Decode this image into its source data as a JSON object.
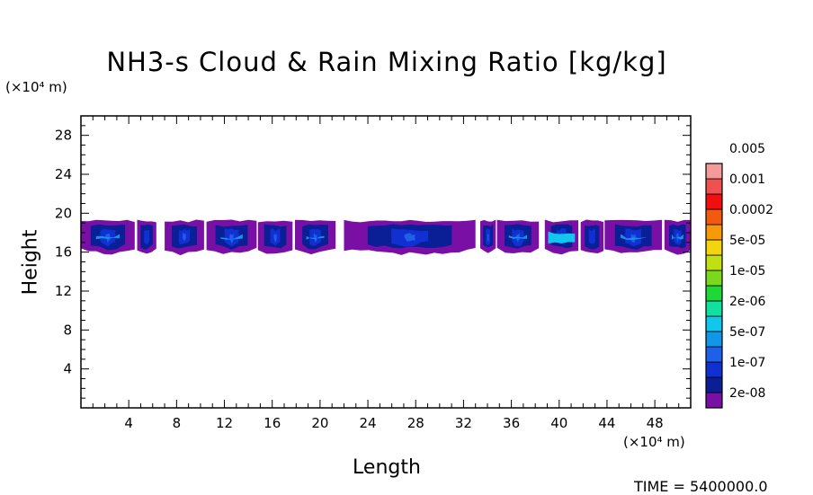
{
  "chart_data": {
    "type": "heatmap",
    "title": "NH3-s Cloud & Rain Mixing Ratio [kg/kg]",
    "xlabel": "Length",
    "ylabel": "Height",
    "x_unit": "(×10⁴ m)",
    "y_unit": "(×10⁴ m)",
    "xlim": [
      0,
      51
    ],
    "ylim": [
      0,
      30
    ],
    "x_ticks": [
      4,
      8,
      12,
      16,
      20,
      24,
      28,
      32,
      36,
      40,
      44,
      48
    ],
    "y_ticks": [
      4,
      8,
      12,
      16,
      20,
      24,
      28
    ],
    "colorbar": {
      "levels": [
        "2e-08",
        "1e-07",
        "5e-07",
        "2e-06",
        "1e-05",
        "5e-05",
        "0.0002",
        "0.001",
        "0.005"
      ],
      "colors": [
        "#7a0fa6",
        "#0a1f96",
        "#1030d2",
        "#1f60ea",
        "#1296e6",
        "#11c8ec",
        "#12e0a0",
        "#1ed838",
        "#7cd81c",
        "#c0e014",
        "#f4d40e",
        "#f79a0a",
        "#f25a10",
        "#f20e0e",
        "#f05050",
        "#f49a9a"
      ]
    },
    "cloud_layer": {
      "height_range": [
        16.5,
        19.2
      ],
      "max_value_approx": "1e-05",
      "clusters": [
        {
          "x_start": 0,
          "x_end": 4.5,
          "peak_level": "2e-06"
        },
        {
          "x_start": 4.7,
          "x_end": 6.3,
          "peak_level": "1e-07"
        },
        {
          "x_start": 7.0,
          "x_end": 10.3,
          "peak_level": "5e-07"
        },
        {
          "x_start": 10.5,
          "x_end": 14.7,
          "peak_level": "2e-06"
        },
        {
          "x_start": 14.8,
          "x_end": 17.7,
          "peak_level": "5e-07"
        },
        {
          "x_start": 17.9,
          "x_end": 21.3,
          "peak_level": "2e-06"
        },
        {
          "x_start": 22.0,
          "x_end": 33.0,
          "peak_level": "5e-07"
        },
        {
          "x_start": 33.4,
          "x_end": 34.7,
          "peak_level": "5e-07"
        },
        {
          "x_start": 34.8,
          "x_end": 38.3,
          "peak_level": "2e-06"
        },
        {
          "x_start": 38.8,
          "x_end": 41.6,
          "peak_level": "1e-05"
        },
        {
          "x_start": 41.8,
          "x_end": 43.7,
          "peak_level": "1e-07"
        },
        {
          "x_start": 43.8,
          "x_end": 48.6,
          "peak_level": "2e-06"
        },
        {
          "x_start": 48.8,
          "x_end": 51.0,
          "peak_level": "2e-06"
        }
      ]
    },
    "time_label": "TIME = 5400000.0"
  }
}
